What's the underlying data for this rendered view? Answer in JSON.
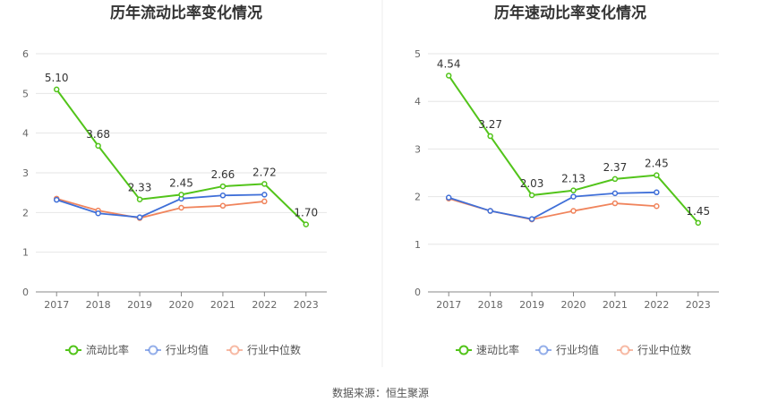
{
  "source": "数据来源：恒生聚源",
  "chart_data": [
    {
      "type": "line",
      "title": "历年流动比率变化情况",
      "categories": [
        "2017",
        "2018",
        "2019",
        "2020",
        "2021",
        "2022",
        "2023"
      ],
      "ylim": [
        0,
        6
      ],
      "yticks": [
        0,
        1,
        2,
        3,
        4,
        5,
        6
      ],
      "grid": true,
      "legend_position": "bottom",
      "series": [
        {
          "name": "流动比率",
          "color": "#52c41a",
          "values": [
            5.1,
            3.68,
            2.33,
            2.45,
            2.66,
            2.72,
            1.7
          ],
          "labels": [
            "5.10",
            "3.68",
            "2.33",
            "2.45",
            "2.66",
            "2.72",
            "1.70"
          ]
        },
        {
          "name": "行业均值",
          "color": "#3f6fd8",
          "values": [
            2.32,
            1.98,
            1.88,
            2.35,
            2.43,
            2.45,
            null
          ]
        },
        {
          "name": "行业中位数",
          "color": "#f0845c",
          "values": [
            2.35,
            2.05,
            1.86,
            2.12,
            2.17,
            2.28,
            null
          ]
        }
      ]
    },
    {
      "type": "line",
      "title": "历年速动比率变化情况",
      "categories": [
        "2017",
        "2018",
        "2019",
        "2020",
        "2021",
        "2022",
        "2023"
      ],
      "ylim": [
        0,
        5
      ],
      "yticks": [
        0,
        1,
        2,
        3,
        4,
        5
      ],
      "grid": true,
      "legend_position": "bottom",
      "series": [
        {
          "name": "速动比率",
          "color": "#52c41a",
          "values": [
            4.54,
            3.27,
            2.03,
            2.13,
            2.37,
            2.45,
            1.45
          ],
          "labels": [
            "4.54",
            "3.27",
            "2.03",
            "2.13",
            "2.37",
            "2.45",
            "1.45"
          ]
        },
        {
          "name": "行业均值",
          "color": "#3f6fd8",
          "values": [
            1.98,
            1.7,
            1.53,
            2.0,
            2.07,
            2.09,
            null
          ]
        },
        {
          "name": "行业中位数",
          "color": "#f0845c",
          "values": [
            1.96,
            1.7,
            1.52,
            1.7,
            1.86,
            1.8,
            null
          ]
        }
      ]
    }
  ]
}
